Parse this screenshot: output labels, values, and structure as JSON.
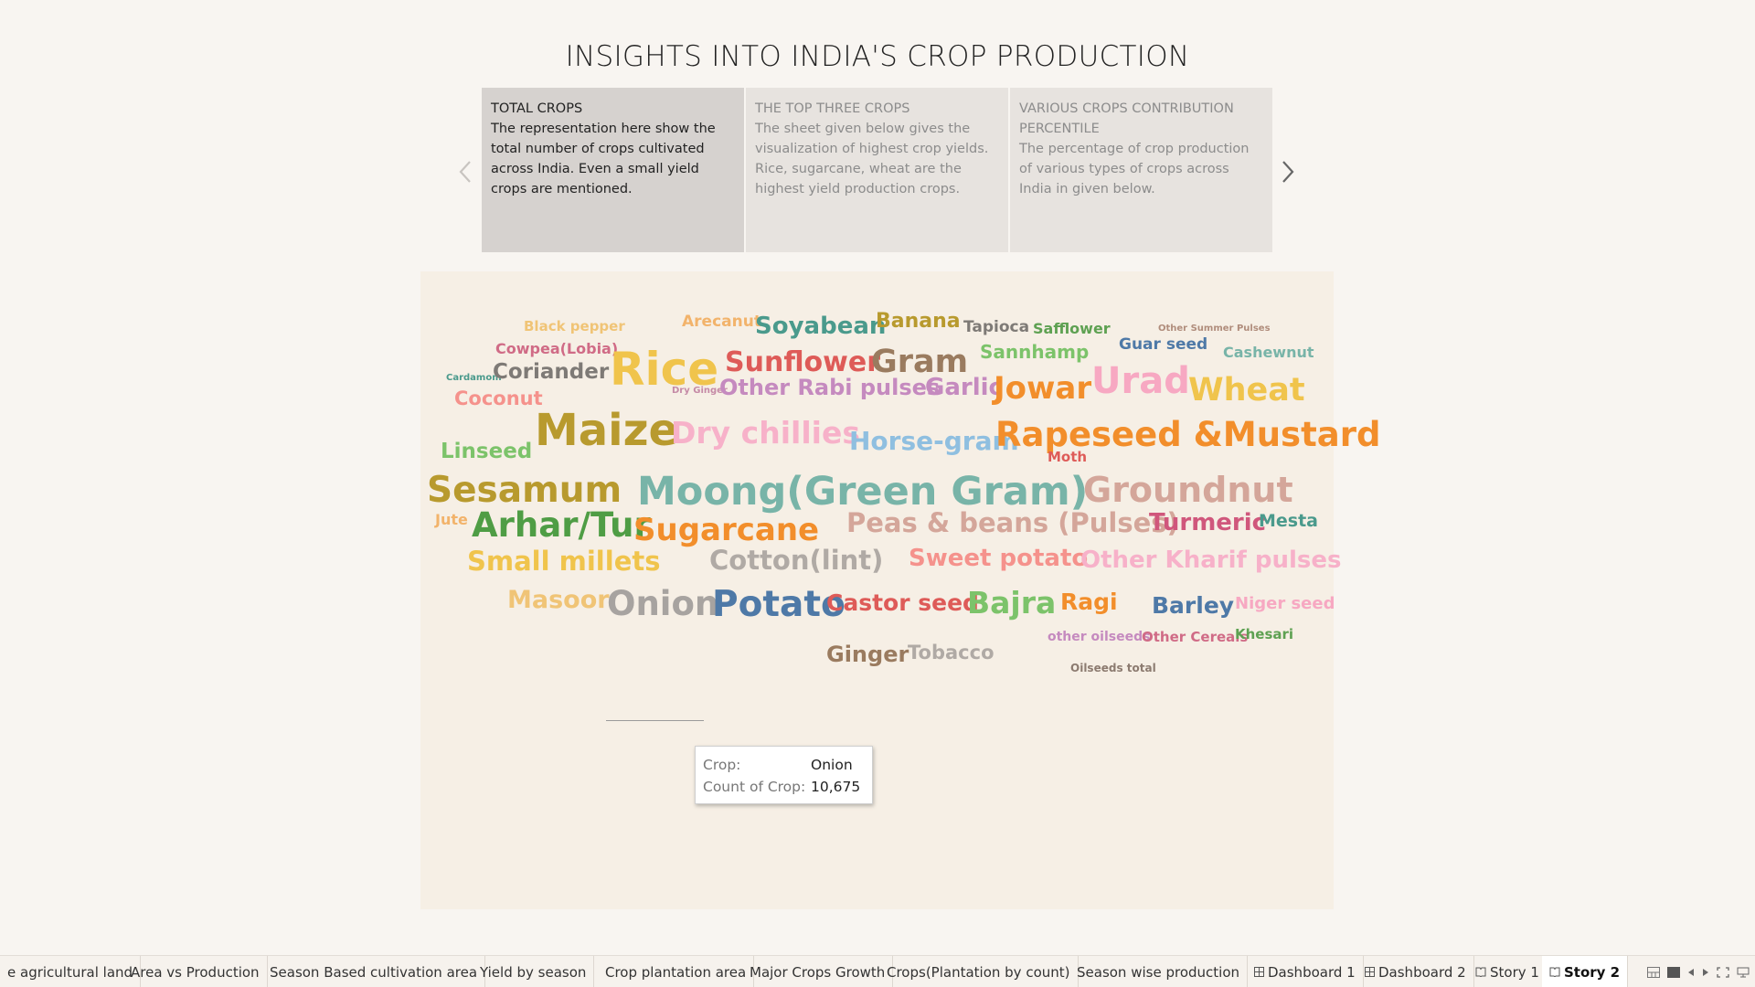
{
  "story": {
    "title": "INSIGHTS INTO INDIA'S CROP PRODUCTION",
    "cards": [
      {
        "title": "TOTAL CROPS",
        "body": "The representation here show the total number of crops cultivated across India. Even a small yield crops are mentioned."
      },
      {
        "title": "THE TOP THREE CROPS",
        "body": "The sheet given below gives the visualization of highest  crop yields. Rice, sugarcane, wheat are the highest yield production crops."
      },
      {
        "title": "VARIOUS CROPS CONTRIBUTION PERCENTILE",
        "body": "The percentage of crop production of various types of crops across India in given below."
      }
    ]
  },
  "wordcloud": {
    "words": [
      {
        "text": "Black pepper",
        "color": "#f0c476"
      },
      {
        "text": "Arecanut",
        "color": "#f2b36b"
      },
      {
        "text": "Soyabean",
        "color": "#4a9a8c"
      },
      {
        "text": "Banana",
        "color": "#b89a2e"
      },
      {
        "text": "Tapioca",
        "color": "#7e7a76"
      },
      {
        "text": "Safflower",
        "color": "#5ea152"
      },
      {
        "text": "Other Summer Pulses",
        "color": "#b08d7c"
      },
      {
        "text": "Cowpea(Lobia)",
        "color": "#d06b86"
      },
      {
        "text": "Rice",
        "color": "#f0c44c"
      },
      {
        "text": "Sunflower",
        "color": "#de5b58"
      },
      {
        "text": "Gram",
        "color": "#9a7b5f"
      },
      {
        "text": "Sannhamp",
        "color": "#7cc36a"
      },
      {
        "text": "Guar seed",
        "color": "#4e79a7"
      },
      {
        "text": "Cashewnut",
        "color": "#78b4a8"
      },
      {
        "text": "Cardamom",
        "color": "#4a9a8c"
      },
      {
        "text": "Coriander",
        "color": "#7e7a76"
      },
      {
        "text": "Dry Ginger",
        "color": "#c58aa6"
      },
      {
        "text": "Other Rabi pulses",
        "color": "#c58abf"
      },
      {
        "text": "Garlic",
        "color": "#c58abf"
      },
      {
        "text": "Jowar",
        "color": "#f28e2b"
      },
      {
        "text": "Urad",
        "color": "#f7a8c2"
      },
      {
        "text": "Wheat",
        "color": "#f0c44c"
      },
      {
        "text": "Coconut",
        "color": "#f5928c"
      },
      {
        "text": "Maize",
        "color": "#b89a2e"
      },
      {
        "text": "Dry chillies",
        "color": "#f7b1c9"
      },
      {
        "text": "Horse-gram",
        "color": "#8fbfe0"
      },
      {
        "text": "Rapeseed &Mustard",
        "color": "#f28e2b"
      },
      {
        "text": "Linseed",
        "color": "#7cc36a"
      },
      {
        "text": "Sesamum",
        "color": "#b89a2e"
      },
      {
        "text": "Moong(Green Gram)",
        "color": "#78b4a8"
      },
      {
        "text": "Moth",
        "color": "#de5b58"
      },
      {
        "text": "Groundnut",
        "color": "#d4a69a"
      },
      {
        "text": "Jute",
        "color": "#f2b36b"
      },
      {
        "text": "Arhar/Tur",
        "color": "#4f9d45"
      },
      {
        "text": "Sugarcane",
        "color": "#f28e2b"
      },
      {
        "text": "Peas & beans (Pulses)",
        "color": "#d4a69a"
      },
      {
        "text": "Turmeric",
        "color": "#d0577c"
      },
      {
        "text": "Mesta",
        "color": "#4a9a8c"
      },
      {
        "text": "Small millets",
        "color": "#f0c44c"
      },
      {
        "text": "Cotton(lint)",
        "color": "#b0aaa5"
      },
      {
        "text": "Sweet potato",
        "color": "#f5928c"
      },
      {
        "text": "Other Kharif pulses",
        "color": "#f7b1c9"
      },
      {
        "text": "Masoor",
        "color": "#f0c476"
      },
      {
        "text": "Onion",
        "color": "#a7a3a0"
      },
      {
        "text": "Potato",
        "color": "#4e79a7"
      },
      {
        "text": "Castor seed",
        "color": "#de5b58"
      },
      {
        "text": "Bajra",
        "color": "#7cc36a"
      },
      {
        "text": "Ragi",
        "color": "#f28e2b"
      },
      {
        "text": "Barley",
        "color": "#4e79a7"
      },
      {
        "text": "Niger seed",
        "color": "#f7a8c2"
      },
      {
        "text": "other oilseeds",
        "color": "#c58abf"
      },
      {
        "text": "Other Cereals",
        "color": "#d06b86"
      },
      {
        "text": "Khesari",
        "color": "#5ea152"
      },
      {
        "text": "Ginger",
        "color": "#9a7b5f"
      },
      {
        "text": "Tobacco",
        "color": "#b0aaa5"
      },
      {
        "text": "Oilseeds total",
        "color": "#8c7b70"
      }
    ]
  },
  "tooltip": {
    "crop_key": "Crop:",
    "crop_val": "Onion",
    "count_key": "Count of Crop:",
    "count_val": "10,675"
  },
  "tabs": [
    {
      "label": "e agricultural land",
      "icon": ""
    },
    {
      "label": "Area vs Production",
      "icon": ""
    },
    {
      "label": "Season Based cultivation area",
      "icon": ""
    },
    {
      "label": "Yield by season",
      "icon": ""
    },
    {
      "label": "Crop plantation area",
      "icon": ""
    },
    {
      "label": "Major Crops Growth",
      "icon": ""
    },
    {
      "label": "Crops(Plantation by count)",
      "icon": ""
    },
    {
      "label": "Season wise production",
      "icon": ""
    },
    {
      "label": "Dashboard 1",
      "icon": "dashboard-icon"
    },
    {
      "label": "Dashboard 2",
      "icon": "dashboard-icon"
    },
    {
      "label": "Story 1",
      "icon": "story-icon"
    },
    {
      "label": "Story 2",
      "icon": "story-icon"
    }
  ]
}
